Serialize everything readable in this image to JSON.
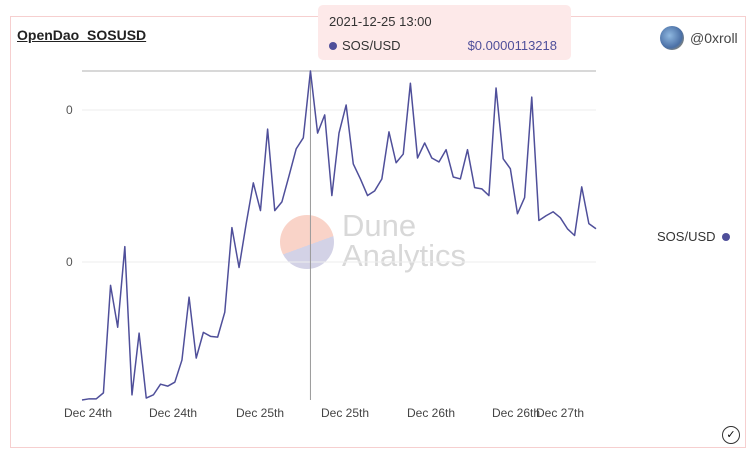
{
  "header": {
    "title": "OpenDao_SOSUSD",
    "author": "@0xroll"
  },
  "tooltip": {
    "date": "2021-12-25 13:00",
    "series": "SOS/USD",
    "value": "$0.0000113218"
  },
  "legend": {
    "label": "SOS/USD"
  },
  "watermark": {
    "line1": "Dune",
    "line2": "Analytics"
  },
  "colors": {
    "line": "#4f4f9a",
    "border": "#f6cfcf",
    "tooltip_bg": "#fde9e9"
  },
  "chart_data": {
    "type": "line",
    "title": "OpenDao_SOSUSD",
    "series": [
      {
        "name": "SOS/USD",
        "unit": "1e-6 USD",
        "values": [
          3.0,
          3.03,
          3.03,
          3.18,
          5.9,
          4.84,
          6.88,
          3.13,
          4.69,
          3.05,
          3.13,
          3.4,
          3.35,
          3.45,
          4.01,
          5.6,
          4.06,
          4.71,
          4.61,
          4.59,
          5.22,
          7.36,
          6.35,
          7.46,
          8.49,
          7.79,
          9.85,
          7.79,
          8.01,
          8.67,
          9.35,
          9.63,
          11.32,
          9.75,
          10.21,
          8.17,
          9.75,
          10.46,
          8.97,
          8.59,
          8.17,
          8.29,
          8.59,
          9.78,
          9.0,
          9.22,
          11.01,
          9.12,
          9.5,
          9.12,
          9.02,
          9.33,
          8.64,
          8.59,
          9.33,
          8.37,
          8.34,
          8.17,
          10.89,
          9.1,
          8.85,
          7.71,
          8.12,
          10.66,
          7.54,
          7.66,
          7.76,
          7.61,
          7.33,
          7.16,
          8.39,
          7.46,
          7.33
        ]
      }
    ],
    "highlight_index": 32,
    "y_tick_labels": [
      "0",
      "0"
    ],
    "x_tick_labels": [
      "Dec 24th",
      "Dec 24th",
      "Dec 25th",
      "Dec 25th",
      "Dec 26th",
      "Dec 26th",
      "Dec 27th"
    ],
    "ylim": [
      3.0,
      11.32
    ],
    "legend_position": "right",
    "grid": true
  }
}
